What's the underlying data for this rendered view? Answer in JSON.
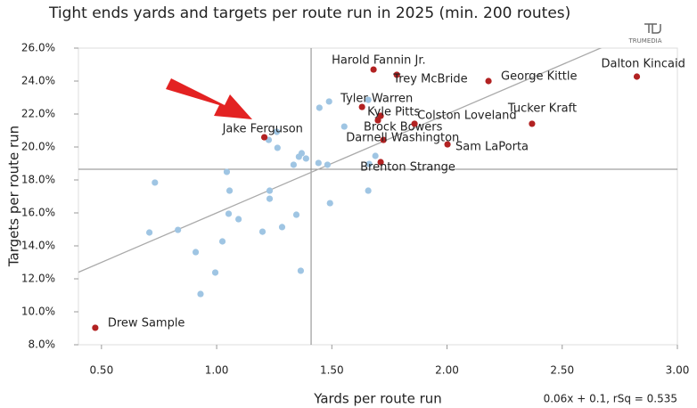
{
  "chart_data": {
    "type": "scatter",
    "title": "Tight ends yards and targets per route run in 2025 (min. 200 routes)",
    "brand": "TRUMEDIA",
    "x_label": "Yards per route run",
    "y_label": "Targets per route run",
    "annotation": "0.06x + 0.1, rSq = 0.535",
    "xlim": [
      0.4,
      3.0
    ],
    "ylim": [
      8,
      26
    ],
    "xticks": [
      {
        "value": 0.5,
        "label": "0.50"
      },
      {
        "value": 1,
        "label": "1.00"
      },
      {
        "value": 1.5,
        "label": "1.50"
      },
      {
        "value": 2,
        "label": "2.00"
      },
      {
        "value": 2.5,
        "label": "2.50"
      },
      {
        "value": 3,
        "label": "3.00"
      }
    ],
    "yticks": [
      {
        "value": 8,
        "label": "8.0%"
      },
      {
        "value": 10,
        "label": "10.0%"
      },
      {
        "value": 12,
        "label": "12.0%"
      },
      {
        "value": 14,
        "label": "14.0%"
      },
      {
        "value": 16,
        "label": "16.0%"
      },
      {
        "value": 18,
        "label": "18.0%"
      },
      {
        "value": 20,
        "label": "20.0%"
      },
      {
        "value": 22,
        "label": "22.0%"
      },
      {
        "value": 24,
        "label": "24.0%"
      },
      {
        "value": 26,
        "label": "26.0%"
      }
    ],
    "x_mean": 1.41,
    "y_mean": 18.65,
    "trend": {
      "slope": 6,
      "intercept": 10,
      "color": "#aaaaaa"
    },
    "series": [
      {
        "color": "#9fc5e3",
        "x": [
          0.732,
          0.708,
          0.832,
          0.909,
          0.93,
          0.994,
          1.025,
          1.044,
          1.056,
          1.052,
          1.095,
          1.199,
          1.226,
          1.261,
          1.264,
          1.23,
          1.23,
          1.284,
          1.334,
          1.357,
          1.369,
          1.388,
          1.346,
          1.365,
          1.442,
          1.481,
          1.492,
          1.446,
          1.488,
          1.554,
          1.658,
          1.689,
          1.662,
          1.658
        ],
        "values": [
          17.84,
          14.81,
          14.97,
          13.62,
          11.08,
          12.38,
          14.27,
          18.49,
          17.35,
          15.95,
          15.62,
          14.86,
          20.43,
          20.92,
          19.95,
          17.35,
          16.86,
          15.14,
          18.92,
          19.41,
          19.62,
          19.3,
          15.89,
          12.49,
          19.03,
          18.92,
          16.59,
          22.38,
          22.76,
          21.24,
          22.86,
          19.46,
          18.97,
          17.35
        ]
      },
      {
        "color": "#b22222",
        "labels": [
          "Drew Sample",
          "Jake Ferguson",
          "Harold Fannin Jr.",
          "Trey McBride",
          "George Kittle",
          "Dalton Kincaid",
          "Tyler Warren",
          "Kyle Pitts",
          "Brock Bowers",
          "Colston Loveland",
          "Tucker Kraft",
          "Darnell Washington",
          "Sam LaPorta",
          "Brenton Strange"
        ],
        "x": [
          0.473,
          1.207,
          1.681,
          1.782,
          2.18,
          2.824,
          1.631,
          1.712,
          1.7,
          1.859,
          2.369,
          1.724,
          2.002,
          1.712
        ],
        "values": [
          9.03,
          20.59,
          24.7,
          24.38,
          24.0,
          24.27,
          22.43,
          21.89,
          21.62,
          21.41,
          21.41,
          20.43,
          20.16,
          19.08
        ]
      }
    ]
  }
}
